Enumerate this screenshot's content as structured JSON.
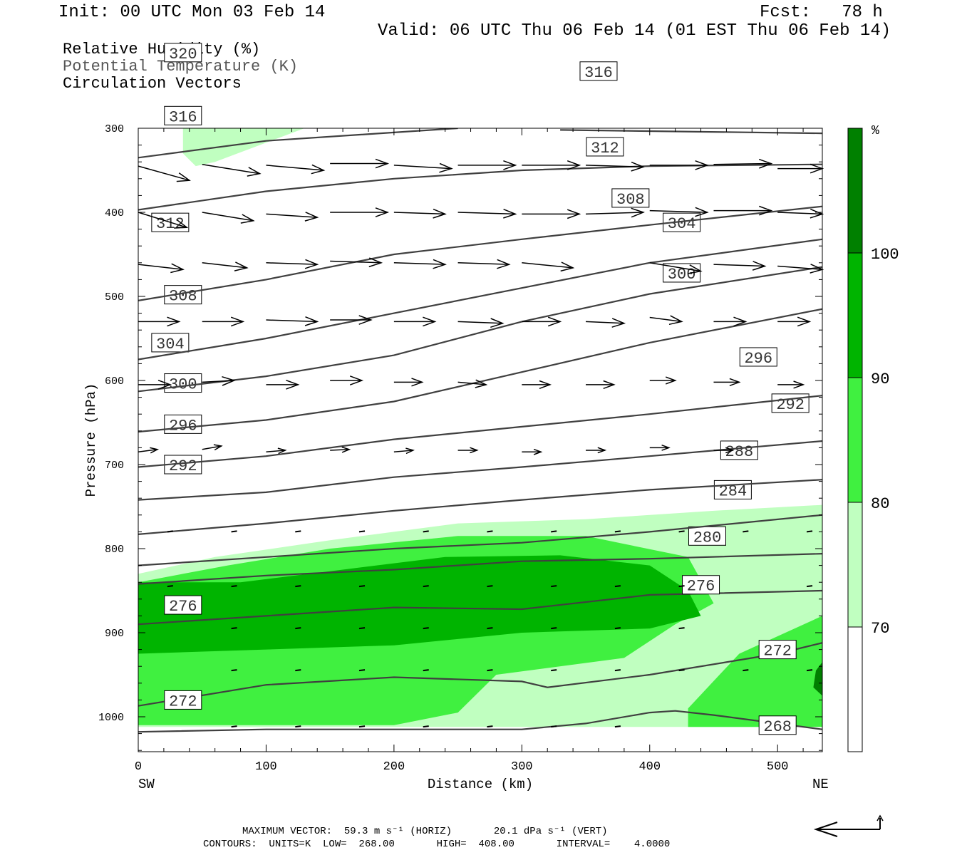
{
  "header": {
    "init": "Init: 00 UTC Mon 03 Feb 14",
    "fcst": "Fcst:   78 h",
    "valid": "Valid: 06 UTC Thu 06 Feb 14 (01 EST Thu 06 Feb 14)"
  },
  "legend": {
    "rh": "Relative Humidity (%)",
    "theta": "Potential Temperature (K)",
    "vectors": "Circulation Vectors"
  },
  "colors": {
    "rh70": "#c0ffc0",
    "rh80": "#40f040",
    "rh90": "#00b400",
    "rh100": "#008000",
    "contour": "#404040"
  },
  "chart_data": {
    "type": "cross-section",
    "xlabel": "Distance (km)",
    "ylabel": "Pressure (hPa)",
    "xlim": [
      0,
      535
    ],
    "ylim": [
      1040,
      300
    ],
    "x_ticks": [
      0,
      100,
      200,
      300,
      400,
      500
    ],
    "y_ticks": [
      300,
      400,
      500,
      600,
      700,
      800,
      900,
      1000
    ],
    "x_end_labels": {
      "left": "SW",
      "right": "NE"
    },
    "colorbar": {
      "unit": "%",
      "levels": [
        70,
        80,
        90,
        100
      ],
      "labels": [
        "70",
        "80",
        "90",
        "100"
      ]
    },
    "rh_regions": [
      {
        "level": 70,
        "points": [
          [
            0,
            830
          ],
          [
            60,
            810
          ],
          [
            150,
            790
          ],
          [
            250,
            770
          ],
          [
            350,
            765
          ],
          [
            450,
            755
          ],
          [
            535,
            748
          ],
          [
            535,
            1012
          ],
          [
            0,
            1012
          ]
        ]
      },
      {
        "level": 70,
        "points": [
          [
            35,
            300
          ],
          [
            130,
            300
          ],
          [
            95,
            320
          ],
          [
            60,
            340
          ],
          [
            45,
            345
          ],
          [
            35,
            330
          ]
        ]
      },
      {
        "level": 80,
        "points": [
          [
            0,
            840
          ],
          [
            70,
            820
          ],
          [
            150,
            800
          ],
          [
            250,
            785
          ],
          [
            350,
            785
          ],
          [
            430,
            810
          ],
          [
            450,
            865
          ],
          [
            420,
            890
          ],
          [
            380,
            930
          ],
          [
            280,
            950
          ],
          [
            250,
            995
          ],
          [
            200,
            1010
          ],
          [
            0,
            1010
          ]
        ]
      },
      {
        "level": 80,
        "points": [
          [
            430,
            990
          ],
          [
            470,
            925
          ],
          [
            535,
            880
          ],
          [
            535,
            1012
          ],
          [
            430,
            1012
          ]
        ]
      },
      {
        "level": 90,
        "points": [
          [
            0,
            840
          ],
          [
            80,
            840
          ],
          [
            160,
            825
          ],
          [
            240,
            810
          ],
          [
            330,
            808
          ],
          [
            400,
            820
          ],
          [
            430,
            850
          ],
          [
            440,
            880
          ],
          [
            400,
            895
          ],
          [
            300,
            900
          ],
          [
            200,
            915
          ],
          [
            100,
            920
          ],
          [
            0,
            925
          ]
        ]
      },
      {
        "level": 100,
        "points": [
          [
            530,
            945
          ],
          [
            535,
            935
          ],
          [
            535,
            975
          ],
          [
            528,
            965
          ]
        ]
      }
    ],
    "theta_contours": [
      {
        "label": "268",
        "label_pos": [
          500,
          1010
        ],
        "points": [
          [
            0,
            1018
          ],
          [
            100,
            1015
          ],
          [
            200,
            1015
          ],
          [
            300,
            1015
          ],
          [
            350,
            1008
          ],
          [
            400,
            995
          ],
          [
            420,
            993
          ],
          [
            450,
            998
          ],
          [
            535,
            1015
          ]
        ]
      },
      {
        "label": "272",
        "label_pos": [
          500,
          920
        ],
        "label_pos2": [
          35,
          980
        ],
        "points": [
          [
            0,
            987
          ],
          [
            100,
            962
          ],
          [
            200,
            953
          ],
          [
            300,
            958
          ],
          [
            320,
            965
          ],
          [
            400,
            950
          ],
          [
            500,
            925
          ],
          [
            535,
            912
          ]
        ]
      },
      {
        "label": "276",
        "label_pos": [
          35,
          867
        ],
        "label_pos2": [
          440,
          843
        ],
        "points": [
          [
            0,
            890
          ],
          [
            100,
            880
          ],
          [
            200,
            870
          ],
          [
            300,
            872
          ],
          [
            400,
            855
          ],
          [
            535,
            850
          ]
        ]
      },
      {
        "label": "280",
        "label_pos": [
          445,
          785
        ],
        "points": [
          [
            0,
            842
          ],
          [
            100,
            832
          ],
          [
            200,
            825
          ],
          [
            300,
            815
          ],
          [
            400,
            812
          ],
          [
            535,
            806
          ]
        ]
      },
      {
        "label": "284",
        "label_pos": [
          465,
          730
        ],
        "points": [
          [
            0,
            820
          ],
          [
            100,
            810
          ],
          [
            200,
            800
          ],
          [
            300,
            793
          ],
          [
            400,
            780
          ],
          [
            535,
            760
          ]
        ]
      },
      {
        "label": "288",
        "label_pos": [
          470,
          683
        ],
        "points": [
          [
            0,
            783
          ],
          [
            100,
            770
          ],
          [
            200,
            755
          ],
          [
            300,
            742
          ],
          [
            400,
            730
          ],
          [
            535,
            718
          ]
        ]
      },
      {
        "label": "292",
        "label_pos": [
          35,
          700
        ],
        "label_pos2": [
          510,
          627
        ],
        "points": [
          [
            0,
            742
          ],
          [
            100,
            733
          ],
          [
            200,
            715
          ],
          [
            300,
            703
          ],
          [
            400,
            690
          ],
          [
            535,
            672
          ]
        ]
      },
      {
        "label": "296",
        "label_pos": [
          35,
          652
        ],
        "label_pos2": [
          485,
          572
        ],
        "points": [
          [
            0,
            703
          ],
          [
            100,
            690
          ],
          [
            200,
            670
          ],
          [
            300,
            655
          ],
          [
            400,
            640
          ],
          [
            535,
            618
          ]
        ]
      },
      {
        "label": "300",
        "label_pos": [
          35,
          603
        ],
        "label_pos2": [
          425,
          472
        ],
        "points": [
          [
            0,
            661
          ],
          [
            100,
            647
          ],
          [
            200,
            625
          ],
          [
            300,
            590
          ],
          [
            400,
            555
          ],
          [
            535,
            515
          ]
        ]
      },
      {
        "label": "304",
        "label_pos": [
          25,
          555
        ],
        "label_pos2": [
          425,
          412
        ],
        "points": [
          [
            0,
            613
          ],
          [
            100,
            595
          ],
          [
            200,
            570
          ],
          [
            300,
            530
          ],
          [
            400,
            497
          ],
          [
            535,
            465
          ]
        ]
      },
      {
        "label": "308",
        "label_pos": [
          35,
          498
        ],
        "label_pos2": [
          385,
          383
        ],
        "points": [
          [
            0,
            575
          ],
          [
            100,
            550
          ],
          [
            200,
            520
          ],
          [
            300,
            490
          ],
          [
            400,
            460
          ],
          [
            535,
            432
          ]
        ]
      },
      {
        "label": "312",
        "label_pos": [
          25,
          412
        ],
        "label_pos2": [
          365,
          322
        ],
        "points": [
          [
            0,
            505
          ],
          [
            100,
            480
          ],
          [
            200,
            450
          ],
          [
            300,
            432
          ],
          [
            400,
            415
          ],
          [
            535,
            393
          ]
        ]
      },
      {
        "label": "316",
        "label_pos": [
          35,
          285
        ],
        "label_pos2": [
          360,
          232
        ],
        "points": [
          [
            0,
            397
          ],
          [
            100,
            375
          ],
          [
            200,
            360
          ],
          [
            300,
            350
          ],
          [
            400,
            345
          ],
          [
            535,
            343
          ]
        ]
      },
      {
        "label": "320",
        "label_pos": [
          35,
          210
        ],
        "points": [
          [
            0,
            335
          ],
          [
            100,
            315
          ],
          [
            200,
            305
          ],
          [
            250,
            300
          ]
        ]
      },
      {
        "label": "",
        "points": [
          [
            330,
            302
          ],
          [
            535,
            306
          ]
        ]
      }
    ],
    "vector_rows": [
      {
        "p": 345,
        "vectors": [
          [
            0,
            345,
            40,
            362
          ],
          [
            50,
            343,
            95,
            354
          ],
          [
            100,
            344,
            145,
            350
          ],
          [
            150,
            342,
            195,
            342
          ],
          [
            200,
            344,
            245,
            348
          ],
          [
            250,
            344,
            295,
            344
          ],
          [
            300,
            344,
            345,
            344
          ],
          [
            350,
            344,
            395,
            346
          ],
          [
            400,
            344,
            445,
            344
          ],
          [
            450,
            343,
            495,
            342
          ],
          [
            500,
            348,
            535,
            348
          ]
        ]
      },
      {
        "p": 405,
        "vectors": [
          [
            0,
            400,
            38,
            418
          ],
          [
            50,
            400,
            90,
            410
          ],
          [
            100,
            402,
            140,
            406
          ],
          [
            150,
            400,
            195,
            400
          ],
          [
            200,
            400,
            240,
            402
          ],
          [
            250,
            400,
            295,
            402
          ],
          [
            300,
            402,
            345,
            402
          ],
          [
            350,
            402,
            395,
            400
          ],
          [
            400,
            398,
            445,
            400
          ],
          [
            450,
            398,
            495,
            398
          ],
          [
            500,
            400,
            535,
            402
          ]
        ]
      },
      {
        "p": 460,
        "vectors": [
          [
            0,
            462,
            35,
            468
          ],
          [
            50,
            460,
            85,
            466
          ],
          [
            100,
            460,
            140,
            462
          ],
          [
            150,
            458,
            190,
            460
          ],
          [
            200,
            460,
            240,
            462
          ],
          [
            250,
            460,
            290,
            462
          ],
          [
            300,
            460,
            340,
            466
          ],
          [
            400,
            460,
            440,
            470
          ],
          [
            450,
            462,
            490,
            464
          ],
          [
            500,
            464,
            535,
            468
          ]
        ]
      },
      {
        "p": 530,
        "vectors": [
          [
            0,
            530,
            32,
            530
          ],
          [
            50,
            530,
            82,
            530
          ],
          [
            100,
            528,
            140,
            530
          ],
          [
            150,
            528,
            182,
            528
          ],
          [
            200,
            530,
            232,
            530
          ],
          [
            250,
            530,
            285,
            532
          ],
          [
            300,
            530,
            330,
            530
          ],
          [
            350,
            530,
            380,
            532
          ],
          [
            400,
            525,
            425,
            530
          ],
          [
            450,
            530,
            475,
            530
          ],
          [
            500,
            530,
            525,
            530
          ]
        ]
      },
      {
        "p": 605,
        "vectors": [
          [
            0,
            605,
            25,
            605
          ],
          [
            50,
            602,
            75,
            600
          ],
          [
            100,
            605,
            125,
            605
          ],
          [
            150,
            600,
            175,
            600
          ],
          [
            200,
            602,
            222,
            602
          ],
          [
            250,
            602,
            272,
            605
          ],
          [
            300,
            605,
            322,
            605
          ],
          [
            350,
            605,
            372,
            605
          ],
          [
            400,
            600,
            420,
            600
          ],
          [
            450,
            602,
            470,
            602
          ],
          [
            500,
            605,
            520,
            605
          ]
        ]
      },
      {
        "p": 685,
        "vectors": [
          [
            0,
            685,
            15,
            682
          ],
          [
            50,
            682,
            65,
            678
          ],
          [
            100,
            685,
            115,
            683
          ],
          [
            150,
            683,
            165,
            682
          ],
          [
            200,
            685,
            215,
            683
          ],
          [
            250,
            683,
            265,
            683
          ],
          [
            300,
            685,
            315,
            685
          ],
          [
            350,
            683,
            365,
            683
          ],
          [
            400,
            680,
            415,
            680
          ],
          [
            450,
            683,
            465,
            683
          ]
        ]
      }
    ]
  },
  "footer": {
    "max_vector_line": "MAXIMUM VECTOR:  59.3 m s⁻¹ (HORIZ)       20.1 dPa s⁻¹ (VERT)",
    "contours_line": "CONTOURS:  UNITS=K  LOW=  268.00       HIGH=  408.00       INTERVAL=    4.0000"
  }
}
